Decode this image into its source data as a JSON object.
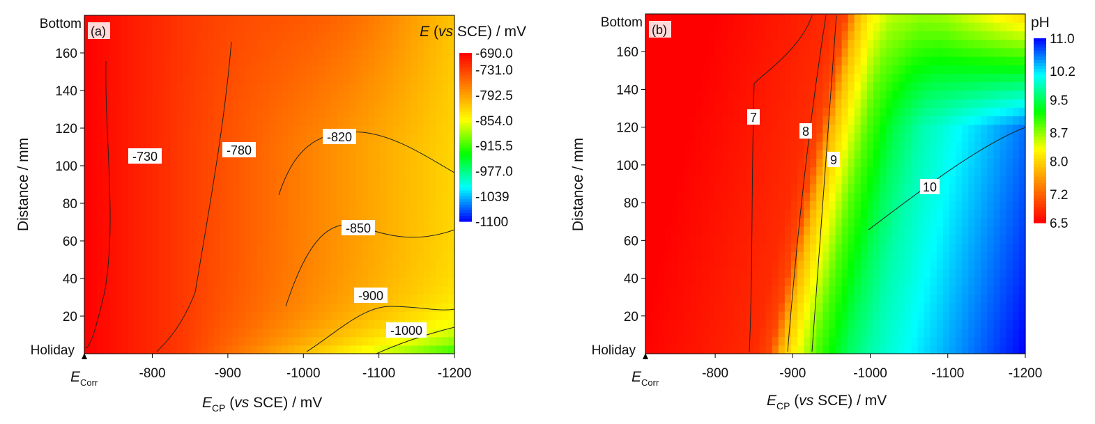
{
  "chart_data": [
    {
      "type": "heatmap",
      "panel_label": "(a)",
      "x_ticks": [
        "-800",
        "-900",
        "-1000",
        "-1100",
        "-1200"
      ],
      "x_tick_values": [
        -800,
        -900,
        -1000,
        -1100,
        -1200
      ],
      "xlim": [
        -710,
        -1200
      ],
      "x_start_label_main": "E",
      "x_start_label_sub": "Corr",
      "xlabel_main": "E",
      "xlabel_sub": "CP",
      "xlabel_rest": " (vs SCE) / mV",
      "y_ticks": [
        "20",
        "40",
        "60",
        "80",
        "100",
        "120",
        "140",
        "160"
      ],
      "y_tick_values": [
        20,
        40,
        60,
        80,
        100,
        120,
        140,
        160
      ],
      "ylim": [
        0,
        180
      ],
      "y_top_label": "Bottom",
      "y_bottom_label": "Holiday",
      "ylabel": "Distance / mm",
      "colorbar_title_main": "E",
      "colorbar_title_rest": " (vs SCE) / mV",
      "colorbar_ticks": [
        "-690.0",
        "-731.0",
        "-792.5",
        "-854.0",
        "-915.5",
        "-977.0",
        "-1039",
        "-1100"
      ],
      "colorbar_tick_values": [
        -690,
        -731,
        -792.5,
        -854,
        -915.5,
        -977,
        -1039,
        -1100
      ],
      "value_range": [
        -1100,
        -690
      ],
      "colors": [
        "#0000ff",
        "#00ffff",
        "#00ff00",
        "#ffff00",
        "#ff8000",
        "#ff0000"
      ],
      "contour_levels": [
        {
          "label": "-730",
          "value": -730
        },
        {
          "label": "-780",
          "value": -780
        },
        {
          "label": "-820",
          "value": -820
        },
        {
          "label": "-850",
          "value": -850
        },
        {
          "label": "-900",
          "value": -900
        },
        {
          "label": "-1000",
          "value": -1000
        }
      ]
    },
    {
      "type": "heatmap",
      "panel_label": "(b)",
      "x_ticks": [
        "-800",
        "-900",
        "-1000",
        "-1100",
        "-1200"
      ],
      "x_tick_values": [
        -800,
        -900,
        -1000,
        -1100,
        -1200
      ],
      "xlim": [
        -710,
        -1200
      ],
      "x_start_label_main": "E",
      "x_start_label_sub": "Corr",
      "xlabel_main": "E",
      "xlabel_sub": "CP",
      "xlabel_rest": " (vs SCE) / mV",
      "y_ticks": [
        "20",
        "40",
        "60",
        "80",
        "100",
        "120",
        "140",
        "160"
      ],
      "y_tick_values": [
        20,
        40,
        60,
        80,
        100,
        120,
        140,
        160
      ],
      "ylim": [
        0,
        180
      ],
      "y_top_label": "Bottom",
      "y_bottom_label": "Holiday",
      "ylabel": "Distance / mm",
      "colorbar_title": "pH",
      "colorbar_ticks": [
        "11.0",
        "10.2",
        "9.5",
        "8.7",
        "8.0",
        "7.2",
        "6.5"
      ],
      "colorbar_tick_values": [
        11.0,
        10.2,
        9.5,
        8.7,
        8.0,
        7.2,
        6.5
      ],
      "value_range": [
        6.5,
        11.0
      ],
      "colors": [
        "#ff0000",
        "#ff8000",
        "#ffff00",
        "#00ff00",
        "#00ffff",
        "#0000ff"
      ],
      "contour_levels": [
        {
          "label": "7",
          "value": 7
        },
        {
          "label": "8",
          "value": 8
        },
        {
          "label": "9",
          "value": 9
        },
        {
          "label": "10",
          "value": 10
        }
      ]
    }
  ]
}
